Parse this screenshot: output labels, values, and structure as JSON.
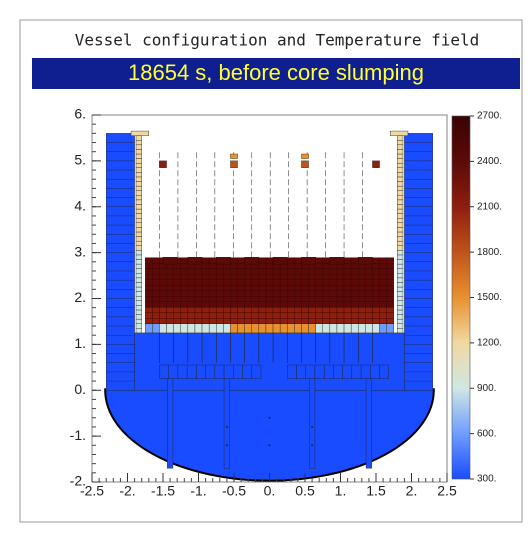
{
  "chart_data": {
    "type": "heatmap",
    "title": "Vessel configuration and Temperature field",
    "subtitle": "18654 s, before core slumping",
    "xlim": [
      -2.5,
      2.5
    ],
    "xticks": [
      {
        "value": -2.5,
        "label": "-2.5"
      },
      {
        "value": -2,
        "label": "-2."
      },
      {
        "value": -1.5,
        "label": "-1.5"
      },
      {
        "value": -1,
        "label": "-1."
      },
      {
        "value": -0.5,
        "label": "-0.5"
      },
      {
        "value": 0,
        "label": "0."
      },
      {
        "value": 0.5,
        "label": "0.5"
      },
      {
        "value": 1,
        "label": "1."
      },
      {
        "value": 1.5,
        "label": "1.5"
      },
      {
        "value": 2,
        "label": "2."
      },
      {
        "value": 2.5,
        "label": "2.5"
      }
    ],
    "ylim": [
      -2,
      6
    ],
    "yticks": [
      {
        "value": -2,
        "label": "-2."
      },
      {
        "value": -1,
        "label": "-1."
      },
      {
        "value": 0,
        "label": "0."
      },
      {
        "value": 1,
        "label": "1."
      },
      {
        "value": 2,
        "label": "2."
      },
      {
        "value": 3,
        "label": "3."
      },
      {
        "value": 4,
        "label": "4."
      },
      {
        "value": 5,
        "label": "5."
      },
      {
        "value": 6,
        "label": "6."
      }
    ],
    "clim": [
      300,
      2700
    ],
    "cticks": [
      {
        "value": 300,
        "label": "300."
      },
      {
        "value": 600,
        "label": "600."
      },
      {
        "value": 900,
        "label": "900."
      },
      {
        "value": 1200,
        "label": "1200."
      },
      {
        "value": 1500,
        "label": "1500."
      },
      {
        "value": 1800,
        "label": "1800."
      },
      {
        "value": 2100,
        "label": "2100."
      },
      {
        "value": 2400,
        "label": "2400."
      },
      {
        "value": 2700,
        "label": "2700."
      }
    ],
    "colors": [
      "#1a4cff",
      "#6f9dff",
      "#cfe7e4",
      "#f0d9a0",
      "#e8912e",
      "#c0531a",
      "#8e1e0e",
      "#5c0a08",
      "#380404"
    ]
  }
}
